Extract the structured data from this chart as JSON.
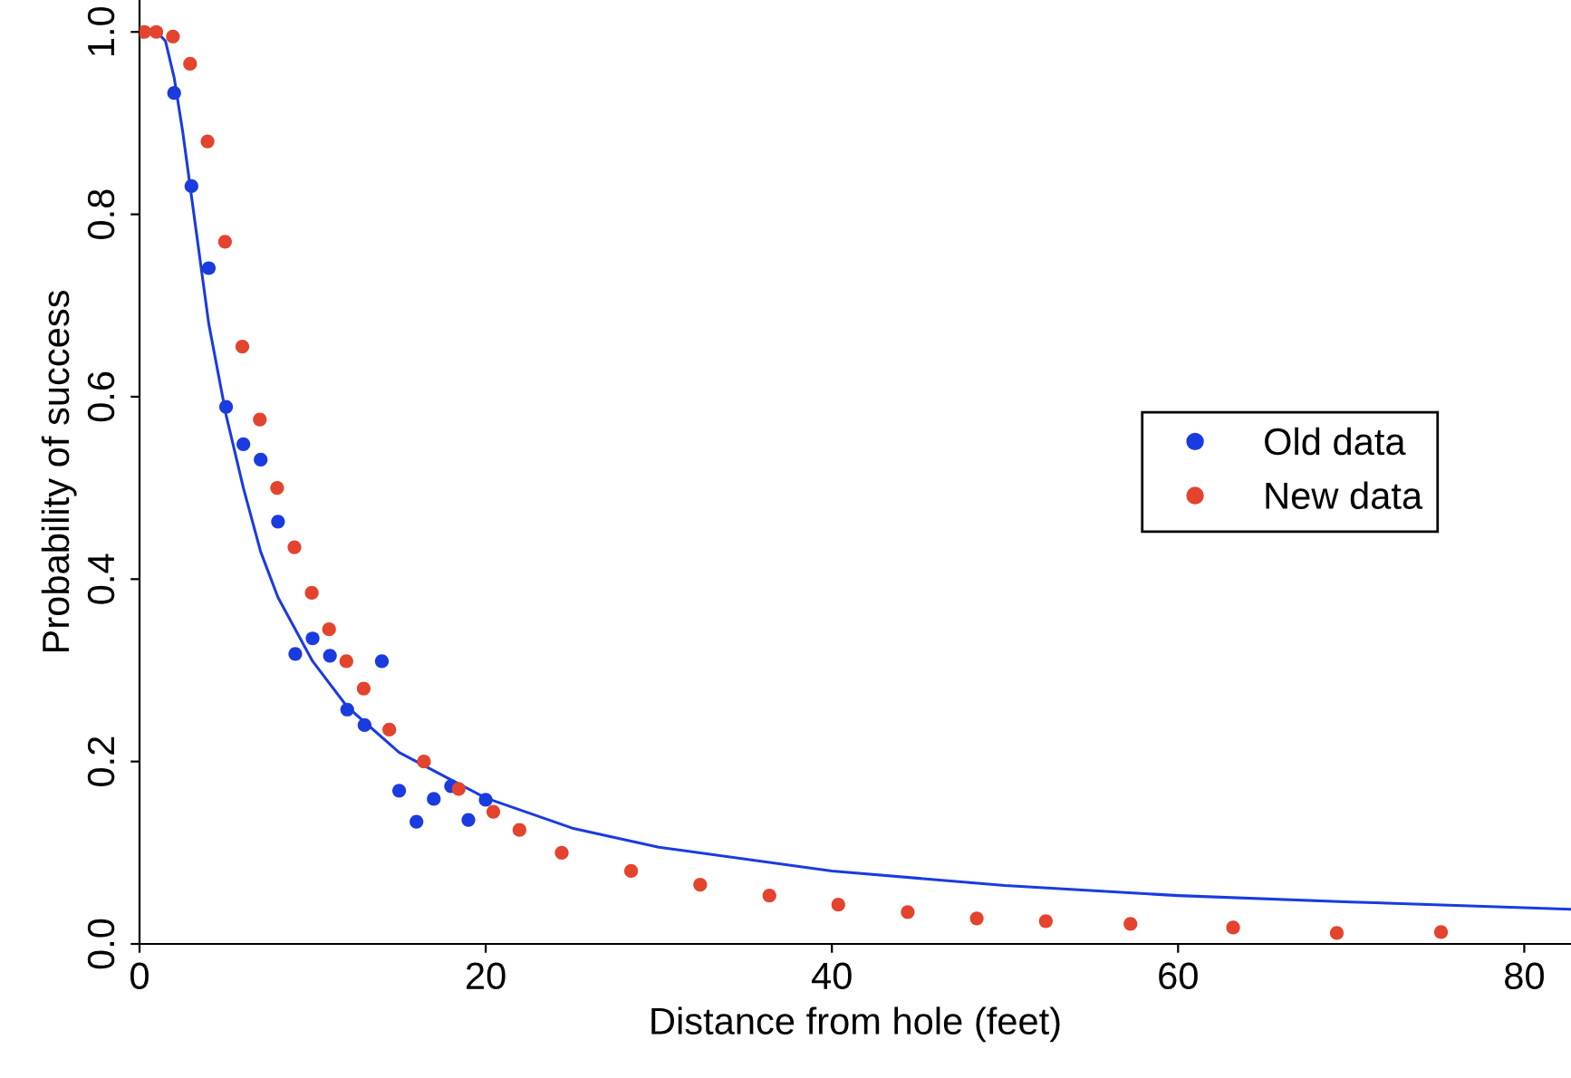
{
  "chart_data": {
    "type": "scatter",
    "xlabel": "Distance from hole (feet)",
    "ylabel": "Probability of success",
    "xlim": [
      0,
      82.7
    ],
    "ylim": [
      0,
      1.035
    ],
    "xticks": [
      0,
      20,
      40,
      60,
      80
    ],
    "yticks": [
      {
        "value": 0,
        "label": "0.0"
      },
      0.2,
      0.4,
      0.6,
      0.8,
      {
        "value": 1,
        "label": "1.0"
      }
    ],
    "marker": "circle",
    "legend": "right",
    "grid": false,
    "series": [
      {
        "name": "Old data",
        "color": "#1a3be0",
        "x": [
          2,
          3,
          4,
          5,
          6,
          7,
          8,
          9,
          10,
          11,
          12,
          13,
          14,
          15,
          16,
          17,
          18,
          19,
          20
        ],
        "values": [
          0.933,
          0.831,
          0.741,
          0.589,
          0.548,
          0.531,
          0.463,
          0.318,
          0.335,
          0.316,
          0.257,
          0.24,
          0.31,
          0.168,
          0.134,
          0.159,
          0.173,
          0.136,
          0.158
        ]
      },
      {
        "name": "New data",
        "color": "#e4432d",
        "x": [
          0.28,
          0.97,
          1.93,
          2.92,
          3.93,
          4.94,
          5.94,
          6.95,
          7.95,
          8.95,
          9.95,
          10.95,
          11.95,
          12.95,
          14.43,
          16.43,
          18.44,
          20.44,
          21.95,
          24.39,
          28.4,
          32.39,
          36.39,
          40.37,
          44.38,
          48.37,
          52.36,
          57.25,
          63.18,
          69.17,
          75.19
        ],
        "values": [
          1.0,
          1.0,
          0.995,
          0.965,
          0.88,
          0.77,
          0.655,
          0.575,
          0.5,
          0.435,
          0.385,
          0.345,
          0.31,
          0.28,
          0.235,
          0.2,
          0.17,
          0.145,
          0.125,
          0.1,
          0.08,
          0.065,
          0.053,
          0.043,
          0.035,
          0.028,
          0.025,
          0.022,
          0.018,
          0.012,
          0.013
        ]
      },
      {
        "type": "line",
        "marker": "none",
        "color": "#1a3be0",
        "x": [
          1,
          1.5,
          2,
          2.5,
          3,
          3.5,
          4,
          5,
          6,
          7,
          8,
          10,
          12,
          15,
          20,
          25,
          30,
          40,
          50,
          60,
          70,
          82.7
        ],
        "values": [
          1.0,
          0.99,
          0.95,
          0.89,
          0.82,
          0.75,
          0.68,
          0.58,
          0.5,
          0.43,
          0.38,
          0.31,
          0.26,
          0.21,
          0.16,
          0.127,
          0.106,
          0.08,
          0.064,
          0.053,
          0.046,
          0.038
        ]
      }
    ]
  }
}
